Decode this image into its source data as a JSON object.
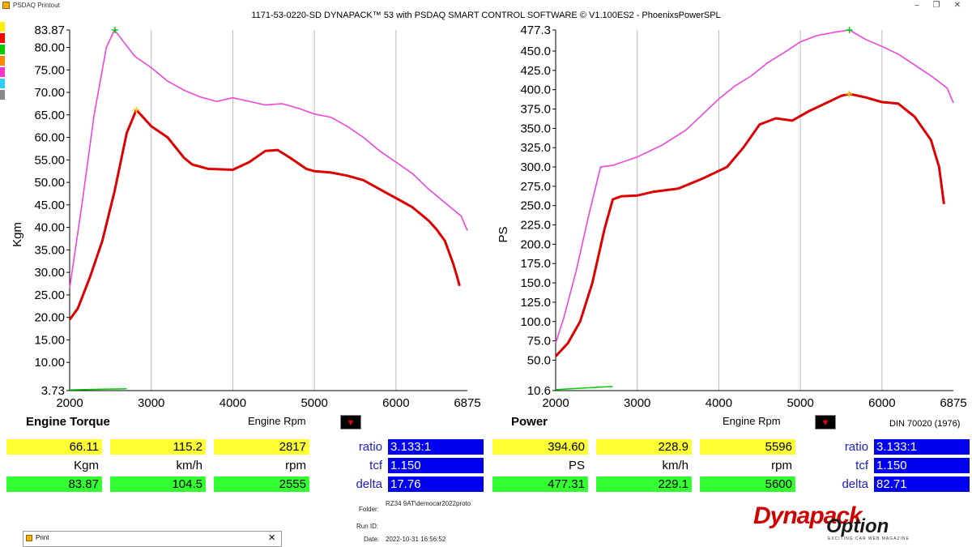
{
  "window": {
    "app_title": "PSDAQ Printout",
    "header": "1171-53-0220-SD DYNAPACK™ 53 with PSDAQ SMART CONTROL SOFTWARE © V1.100ES2 - PhoenixsPowerSPL",
    "controls": [
      "–",
      "❐",
      "✕"
    ]
  },
  "colors": {
    "accent_red": "#dd0000",
    "magenta": "#ee44dd",
    "swatches": [
      "#ffee00",
      "#ff0000",
      "#00cc00",
      "#ff8800",
      "#ff33cc",
      "#33ccff",
      "#888888"
    ]
  },
  "panels": [
    {
      "title": "Engine Torque",
      "rpm_label": "Engine Rpm",
      "y_label": "Kgm",
      "values": {
        "yellow": [
          "66.11",
          "115.2",
          "2817"
        ],
        "units": [
          "Kgm",
          "km/h",
          "rpm"
        ],
        "green": [
          "83.87",
          "104.5",
          "2555"
        ]
      },
      "ratio_labels": {
        "ratio": "ratio",
        "tcf": "tcf",
        "delta": "delta"
      },
      "ratio_values": {
        "ratio": "3.133:1",
        "tcf": "1.150",
        "delta": "17.76"
      }
    },
    {
      "title": "Power",
      "rpm_label": "Engine Rpm",
      "y_label": "PS",
      "values": {
        "yellow": [
          "394.60",
          "228.9",
          "5596"
        ],
        "units": [
          "PS",
          "km/h",
          "rpm"
        ],
        "green": [
          "477.31",
          "229.1",
          "5600"
        ]
      },
      "ratio_labels": {
        "ratio": "ratio",
        "tcf": "tcf",
        "delta": "delta"
      },
      "ratio_values": {
        "ratio": "3.133:1",
        "tcf": "1.150",
        "delta": "82.71"
      },
      "din": "DIN 70020 (1976)"
    }
  ],
  "footer": {
    "folder_label": "Folder:",
    "folder_value": "RZ34 9AT\\democar2022proto",
    "runid_label": "Run ID:",
    "runid_value": "",
    "date_label": "Date:",
    "date_value": "2022-10-31 16:56:52"
  },
  "print_window": {
    "title": "Print",
    "close": "✕"
  },
  "logo": {
    "brand": "Dynapack",
    "overlay": "Option",
    "tagline": "EXCITING CAR WEB MAGAZINE"
  },
  "chart_data": [
    {
      "type": "line",
      "ylabel": "Kgm",
      "xlabel": "Engine Rpm",
      "x_ticks": [
        "2000",
        "3000",
        "4000",
        "5000",
        "6000",
        "6875"
      ],
      "y_ticks": [
        "83.87",
        "80.00",
        "75.00",
        "70.00",
        "65.00",
        "60.00",
        "55.00",
        "50.00",
        "45.00",
        "40.00",
        "35.00",
        "30.00",
        "25.00",
        "20.00",
        "15.00",
        "10.00",
        "3.73"
      ],
      "xlim": [
        2000,
        6875
      ],
      "ylim": [
        3.73,
        83.87
      ],
      "series": [
        {
          "color": "#ee44dd",
          "x": [
            2000,
            2150,
            2300,
            2450,
            2550,
            2650,
            2800,
            3000,
            3200,
            3400,
            3600,
            3800,
            4000,
            4200,
            4400,
            4600,
            4800,
            5000,
            5200,
            5400,
            5600,
            5800,
            6000,
            6200,
            6400,
            6600,
            6800,
            6875
          ],
          "y": [
            26.5,
            45,
            65,
            80,
            83.87,
            81.5,
            78,
            75.5,
            72.5,
            70.5,
            69,
            68,
            68.8,
            68,
            67.2,
            67.5,
            66.5,
            65.2,
            64.5,
            62.5,
            60,
            57,
            54.5,
            52,
            48.5,
            45.5,
            42.5,
            39.3
          ]
        },
        {
          "color": "#dd0000",
          "x": [
            2000,
            2100,
            2250,
            2400,
            2550,
            2700,
            2817,
            2900,
            3000,
            3200,
            3400,
            3500,
            3700,
            4000,
            4200,
            4400,
            4550,
            4700,
            4900,
            5000,
            5200,
            5400,
            5600,
            5800,
            6000,
            6200,
            6400,
            6500,
            6600,
            6700,
            6750,
            6780
          ],
          "y": [
            19.5,
            22,
            29,
            37,
            48,
            61,
            66.11,
            64.5,
            62.5,
            60,
            55.5,
            54,
            53,
            52.8,
            54.5,
            57,
            57.2,
            55.5,
            53,
            52.5,
            52.2,
            51.5,
            50.5,
            48.5,
            46.5,
            44.5,
            41.5,
            39.5,
            37,
            32,
            29,
            27
          ]
        },
        {
          "color": "#00cc00",
          "x": [
            2000,
            2700
          ],
          "y": [
            3.9,
            4.15
          ]
        }
      ],
      "markers": [
        {
          "x": 2555,
          "y": 83.87,
          "color": "#00cc00"
        },
        {
          "x": 2817,
          "y": 66.11,
          "color": "#ffcc00"
        }
      ]
    },
    {
      "type": "line",
      "ylabel": "PS",
      "xlabel": "Engine Rpm",
      "x_ticks": [
        "2000",
        "3000",
        "4000",
        "5000",
        "6000",
        "6875"
      ],
      "y_ticks": [
        "477.3",
        "450.0",
        "425.0",
        "400.0",
        "375.0",
        "350.0",
        "325.0",
        "300.0",
        "275.0",
        "250.0",
        "225.0",
        "200.0",
        "175.0",
        "150.0",
        "125.0",
        "100.0",
        "75.0",
        "50.0",
        "10.6"
      ],
      "xlim": [
        2000,
        6875
      ],
      "ylim": [
        10.6,
        477.3
      ],
      "series": [
        {
          "color": "#ee44dd",
          "x": [
            2000,
            2100,
            2250,
            2400,
            2550,
            2700,
            3000,
            3300,
            3600,
            3800,
            4000,
            4200,
            4400,
            4600,
            4800,
            5000,
            5200,
            5400,
            5600,
            5800,
            6000,
            6200,
            6400,
            6600,
            6800,
            6875
          ],
          "y": [
            72,
            105,
            165,
            235,
            300,
            302,
            313,
            328,
            348,
            368,
            388,
            405,
            418,
            435,
            448,
            462,
            470,
            474,
            477.31,
            465,
            456,
            446,
            432,
            418,
            402,
            383
          ]
        },
        {
          "color": "#dd0000",
          "x": [
            2000,
            2150,
            2300,
            2450,
            2600,
            2700,
            2800,
            3000,
            3200,
            3500,
            3800,
            4100,
            4300,
            4500,
            4700,
            4900,
            5100,
            5300,
            5500,
            5600,
            5800,
            6000,
            6100,
            6200,
            6400,
            6600,
            6700,
            6760
          ],
          "y": [
            55,
            72,
            100,
            150,
            220,
            258,
            262,
            263,
            268,
            272,
            285,
            300,
            325,
            355,
            363,
            360,
            372,
            382,
            392,
            394.6,
            390,
            384,
            383,
            382,
            365,
            335,
            300,
            252
          ]
        },
        {
          "color": "#00cc00",
          "x": [
            2000,
            2700
          ],
          "y": [
            12,
            16
          ]
        }
      ],
      "markers": [
        {
          "x": 5600,
          "y": 477.31,
          "color": "#00cc00"
        },
        {
          "x": 5596,
          "y": 394.6,
          "color": "#ffcc00"
        }
      ]
    }
  ]
}
